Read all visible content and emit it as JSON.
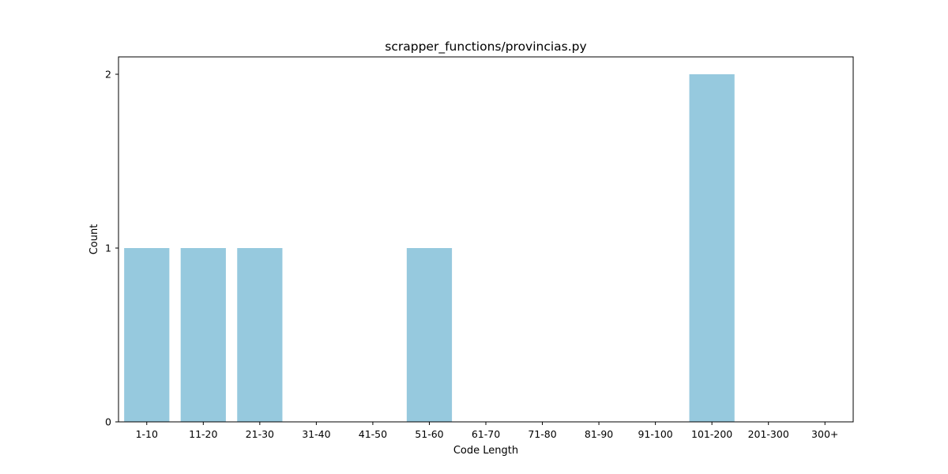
{
  "chart_data": {
    "type": "bar",
    "title": "scrapper_functions/provincias.py",
    "xlabel": "Code Length",
    "ylabel": "Count",
    "categories": [
      "1-10",
      "11-20",
      "21-30",
      "31-40",
      "41-50",
      "51-60",
      "61-70",
      "71-80",
      "81-90",
      "91-100",
      "101-200",
      "201-300",
      "300+"
    ],
    "values": [
      1,
      1,
      1,
      0,
      0,
      1,
      0,
      0,
      0,
      0,
      2,
      0,
      0
    ],
    "ylim": [
      0,
      2.1
    ],
    "yticks": [
      0,
      1,
      2
    ],
    "grid": false,
    "bar_color": "#96c9de"
  }
}
